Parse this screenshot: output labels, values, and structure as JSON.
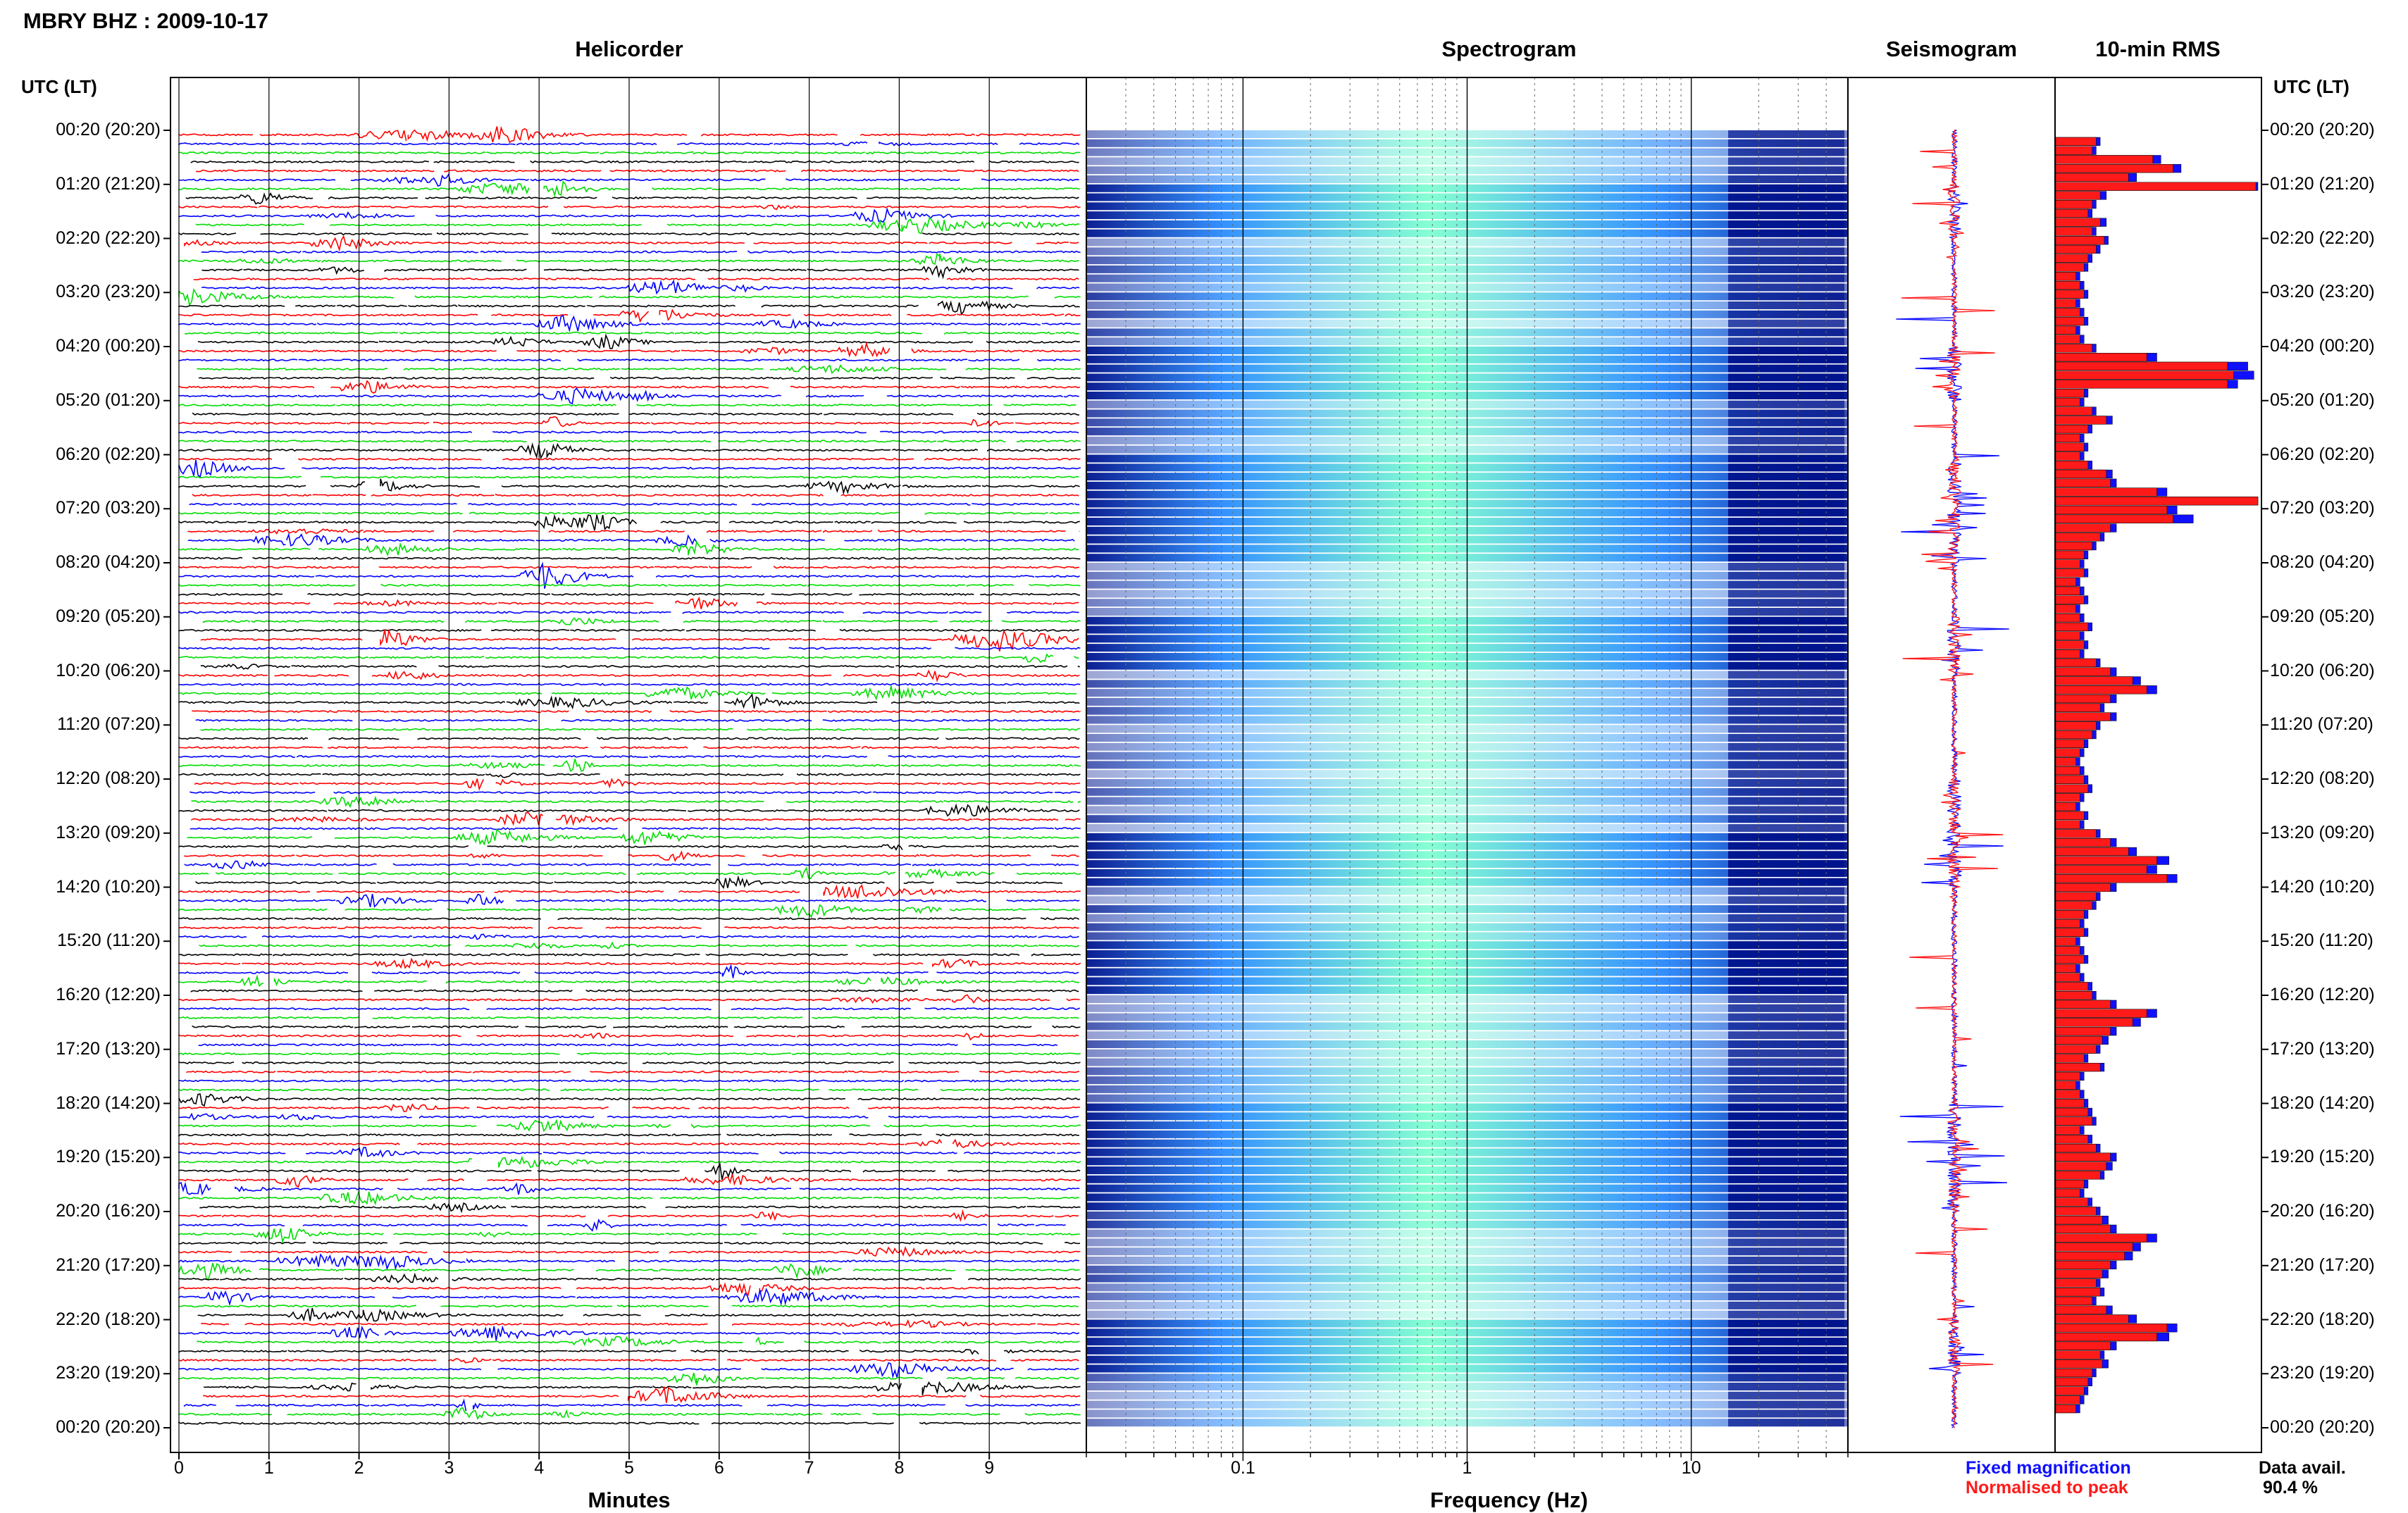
{
  "header": {
    "title": "MBRY BHZ : 2009-10-17"
  },
  "panels": {
    "helicorder": "Helicorder",
    "spectrogram": "Spectrogram",
    "seismogram": "Seismogram",
    "rms": "10-min RMS"
  },
  "axis": {
    "y_title_left": "UTC (LT)",
    "y_title_right": "UTC (LT)",
    "minutes_label": "Minutes",
    "frequency_label": "Frequency (Hz)"
  },
  "legend": {
    "fixed": "Fixed magnification",
    "normalised": "Normalised to peak",
    "fixed_color": "#1010ff",
    "normalised_color": "#ff1a1a"
  },
  "availability": {
    "label": "Data avail.",
    "value": "90.4 %"
  },
  "colors": {
    "trace_cycle": [
      "#ff0000",
      "#0000ff",
      "#00dd00",
      "#000000"
    ],
    "spectrogram_low": "#00138c",
    "spectrogram_mid": "#2a8cff",
    "spectrogram_high": "#7fffd0"
  },
  "chart_data": [
    {
      "type": "line",
      "name": "helicorder",
      "title": "Helicorder",
      "xlabel": "Minutes",
      "x_ticks": [
        0,
        1,
        2,
        3,
        4,
        5,
        6,
        7,
        8,
        9
      ],
      "xlim": [
        0,
        10
      ],
      "y_ticks": [
        "00:20 (20:20)",
        "01:20 (21:20)",
        "02:20 (22:20)",
        "03:20 (23:20)",
        "04:20 (00:20)",
        "05:20 (01:20)",
        "06:20 (02:20)",
        "07:20 (03:20)",
        "08:20 (04:20)",
        "09:20 (05:20)",
        "10:20 (06:20)",
        "11:20 (07:20)",
        "12:20 (08:20)",
        "13:20 (09:20)",
        "14:20 (10:20)",
        "15:20 (11:20)",
        "16:20 (12:20)",
        "17:20 (13:20)",
        "18:20 (14:20)",
        "19:20 (15:20)",
        "20:20 (16:20)",
        "21:20 (17:20)",
        "22:20 (18:20)",
        "23:20 (19:20)",
        "00:20 (20:20)"
      ],
      "rows_per_hour": 6,
      "grid": true
    },
    {
      "type": "heatmap",
      "name": "spectrogram",
      "title": "Spectrogram",
      "xlabel": "Frequency (Hz)",
      "x_scale": "log",
      "x_ticks": [
        0.1,
        1,
        10
      ],
      "xlim": [
        0.02,
        50
      ]
    },
    {
      "type": "line",
      "name": "seismogram",
      "title": "Seismogram",
      "series": [
        {
          "name": "Fixed magnification",
          "color": "#1010ff"
        },
        {
          "name": "Normalised to peak",
          "color": "#ff1a1a"
        }
      ]
    },
    {
      "type": "bar",
      "name": "rms",
      "title": "10-min RMS",
      "series": [
        {
          "name": "Fixed magnification",
          "color": "#1010ff",
          "values": [
            0.22,
            0.2,
            0.52,
            0.62,
            0.4,
            1.0,
            0.25,
            0.2,
            0.18,
            0.25,
            0.2,
            0.26,
            0.22,
            0.18,
            0.16,
            0.12,
            0.14,
            0.16,
            0.12,
            0.14,
            0.16,
            0.12,
            0.14,
            0.2,
            0.5,
            0.95,
            0.98,
            0.9,
            0.16,
            0.14,
            0.2,
            0.28,
            0.18,
            0.14,
            0.16,
            0.14,
            0.18,
            0.28,
            0.3,
            0.55,
            1.0,
            0.6,
            0.68,
            0.3,
            0.24,
            0.2,
            0.16,
            0.14,
            0.16,
            0.12,
            0.14,
            0.16,
            0.12,
            0.14,
            0.18,
            0.14,
            0.16,
            0.14,
            0.22,
            0.3,
            0.42,
            0.5,
            0.3,
            0.24,
            0.3,
            0.22,
            0.2,
            0.16,
            0.14,
            0.12,
            0.14,
            0.16,
            0.18,
            0.14,
            0.12,
            0.16,
            0.14,
            0.22,
            0.3,
            0.4,
            0.56,
            0.5,
            0.6,
            0.3,
            0.22,
            0.2,
            0.16,
            0.14,
            0.16,
            0.12,
            0.14,
            0.16,
            0.12,
            0.14,
            0.18,
            0.2,
            0.3,
            0.5,
            0.42,
            0.3,
            0.26,
            0.22,
            0.16,
            0.24,
            0.14,
            0.12,
            0.14,
            0.16,
            0.18,
            0.2,
            0.14,
            0.18,
            0.22,
            0.3,
            0.28,
            0.24,
            0.16,
            0.14,
            0.18,
            0.22,
            0.26,
            0.3,
            0.5,
            0.42,
            0.38,
            0.3,
            0.26,
            0.22,
            0.24,
            0.2,
            0.28,
            0.4,
            0.6,
            0.56,
            0.3,
            0.24,
            0.26,
            0.2,
            0.18,
            0.16,
            0.14,
            0.12
          ],
          "note_unit": "fraction of panel width"
        },
        {
          "name": "Normalised to peak",
          "color": "#ff1a1a",
          "values": [
            0.2,
            0.18,
            0.48,
            0.58,
            0.36,
            0.99,
            0.22,
            0.18,
            0.16,
            0.22,
            0.18,
            0.24,
            0.2,
            0.16,
            0.14,
            0.1,
            0.12,
            0.14,
            0.1,
            0.12,
            0.14,
            0.1,
            0.12,
            0.18,
            0.45,
            0.85,
            0.88,
            0.85,
            0.14,
            0.12,
            0.18,
            0.25,
            0.16,
            0.12,
            0.14,
            0.12,
            0.16,
            0.25,
            0.27,
            0.5,
            1.0,
            0.55,
            0.58,
            0.27,
            0.22,
            0.18,
            0.14,
            0.12,
            0.14,
            0.1,
            0.12,
            0.14,
            0.1,
            0.12,
            0.16,
            0.12,
            0.14,
            0.12,
            0.2,
            0.27,
            0.38,
            0.45,
            0.27,
            0.22,
            0.27,
            0.2,
            0.18,
            0.14,
            0.12,
            0.1,
            0.12,
            0.14,
            0.16,
            0.12,
            0.1,
            0.14,
            0.12,
            0.2,
            0.27,
            0.36,
            0.5,
            0.45,
            0.55,
            0.27,
            0.2,
            0.18,
            0.14,
            0.12,
            0.14,
            0.1,
            0.12,
            0.14,
            0.1,
            0.12,
            0.16,
            0.18,
            0.27,
            0.45,
            0.38,
            0.27,
            0.23,
            0.2,
            0.14,
            0.22,
            0.12,
            0.1,
            0.12,
            0.14,
            0.16,
            0.18,
            0.12,
            0.16,
            0.2,
            0.27,
            0.25,
            0.22,
            0.14,
            0.12,
            0.16,
            0.2,
            0.23,
            0.27,
            0.45,
            0.38,
            0.34,
            0.27,
            0.23,
            0.2,
            0.22,
            0.18,
            0.25,
            0.36,
            0.55,
            0.5,
            0.27,
            0.22,
            0.23,
            0.18,
            0.16,
            0.14,
            0.12,
            0.1
          ]
        }
      ]
    }
  ]
}
